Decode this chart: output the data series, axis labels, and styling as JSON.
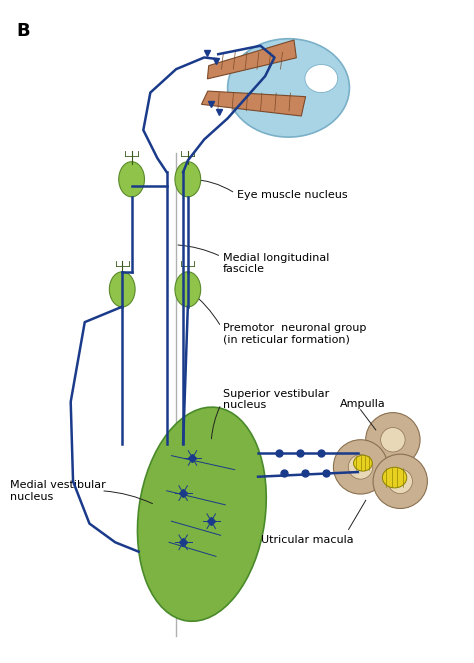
{
  "bg_color": "#ffffff",
  "line_width": 1.8,
  "panel_label": "B",
  "labels": {
    "eye_muscle": "Eye muscle nucleus",
    "mlf": "Medial longitudinal\nfascicle",
    "premotor": "Premotor  neuronal group\n(in reticular formation)",
    "superior": "Superior vestibular\nnucleus",
    "medial": "Medial vestibular\nnucleus",
    "ampulla": "Ampulla",
    "utricular": "Utricular macula"
  },
  "colors": {
    "eye_globe": "#a8d4e6",
    "eye_globe_edge": "#7ab0c8",
    "muscle": "#c8845a",
    "muscle_edge": "#7a4a2a",
    "neuron_green": "#8fc34a",
    "neuron_green_edge": "#5a8a2a",
    "neuron_dark": "#3a5a1a",
    "vestibular_green": "#7cb342",
    "vestibular_edge": "#4a8a2a",
    "ampulla_tan": "#c8b090",
    "ampulla_edge": "#8a7050",
    "ampulla_hole": "#e8d8b8",
    "utricular_yellow": "#e8d020",
    "utricular_edge": "#8a8000",
    "spine_gray": "#b0b0b0",
    "line_blue": "#1a3a8a",
    "arrow_black": "#222222"
  }
}
